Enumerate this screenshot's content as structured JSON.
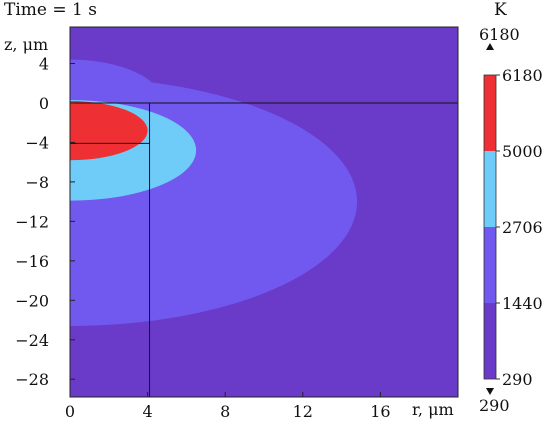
{
  "chart_data": {
    "type": "heatmap",
    "title": "Time = 1 s",
    "xlabel": "r, μm",
    "ylabel": "z, μm",
    "xlim": [
      0,
      20
    ],
    "ylim": [
      -29.8,
      7.7
    ],
    "xticks": [
      0,
      4,
      8,
      12,
      16
    ],
    "yticks": [
      4,
      0,
      -4,
      -8,
      -12,
      -16,
      -20,
      -24,
      -28
    ],
    "contour_levels": [
      {
        "min": 290,
        "max": 1440,
        "color": "#6a3ac8"
      },
      {
        "min": 1440,
        "max": 2706,
        "color": "#7158ee"
      },
      {
        "min": 2706,
        "max": 5000,
        "color": "#6fcbf8"
      },
      {
        "min": 5000,
        "max": 6180,
        "color": "#ee2f33"
      }
    ],
    "regions": [
      {
        "level": 0,
        "shape": "background"
      },
      {
        "level": 1,
        "shape": "semi-ellipse",
        "rx": 4.8,
        "ry": 4.4,
        "cz": 0
      },
      {
        "level": 1,
        "shape": "semi-ellipse",
        "rx": 14.8,
        "ry": 12.6,
        "cz": -10
      },
      {
        "level": 2,
        "shape": "semi-ellipse",
        "rx": 6.5,
        "ry": 5.1,
        "cz": -4.8
      },
      {
        "level": 3,
        "shape": "semi-ellipse",
        "rx": 4,
        "ry": 3,
        "cz": -2.8
      }
    ],
    "reference_lines": {
      "z0": 0,
      "z_depth": -4.1,
      "r_radius": 4.1
    },
    "colorbar": {
      "unit": "K",
      "max_label": "6180",
      "min_label": "290",
      "tick_labels": [
        "6180",
        "5000",
        "2706",
        "1440",
        "290"
      ]
    }
  }
}
